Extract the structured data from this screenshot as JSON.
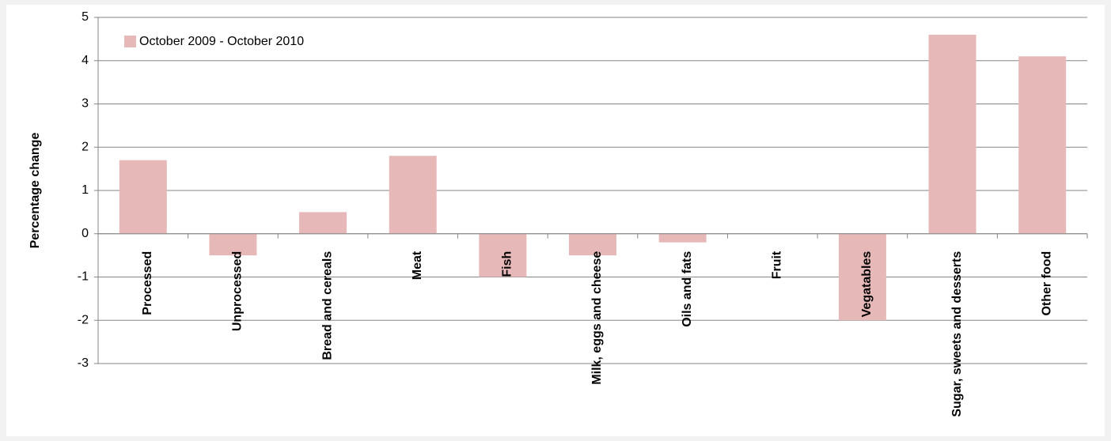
{
  "chart_data": {
    "type": "bar",
    "y_label": "Percentage change",
    "categories": [
      "Processed",
      "Unprocessed",
      "Bread and cereals",
      "Meat",
      "Fish",
      "Milk, eggs and cheese",
      "Oils and fats",
      "Fruit",
      "Vegatables",
      "Sugar, sweets and desserts",
      "Other food"
    ],
    "series": [
      {
        "name": "October 2009 - October 2010",
        "color": "#e6b9b8",
        "values": [
          1.7,
          -0.5,
          0.5,
          1.8,
          -1.0,
          -0.5,
          -0.2,
          0,
          -2.0,
          4.6,
          4.1
        ]
      }
    ],
    "ylim": [
      -3,
      5
    ],
    "yticks": [
      -3,
      -2,
      -1,
      0,
      1,
      2,
      3,
      4,
      5
    ],
    "grid": true,
    "legend": "top-left"
  }
}
